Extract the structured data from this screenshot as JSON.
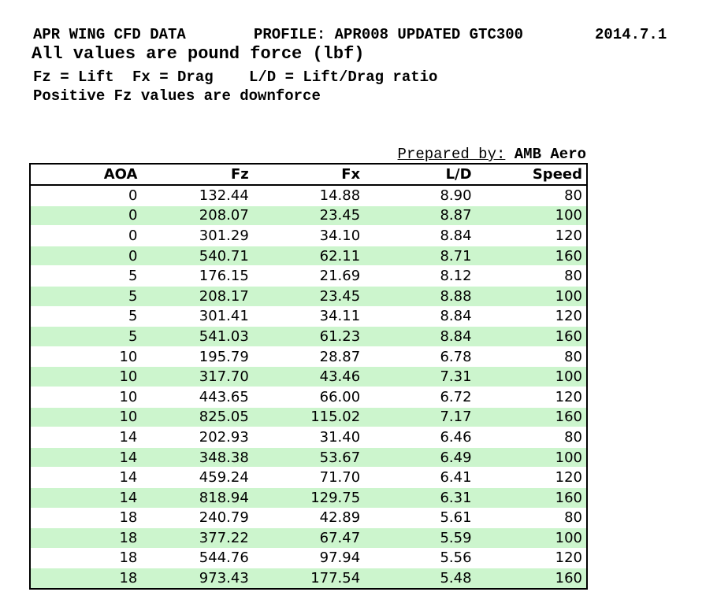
{
  "page": {
    "background": "#ffffff"
  },
  "header": {
    "title": "APR WING CFD DATA",
    "profile": "PROFILE: APR008 UPDATED GTC300",
    "date": "2014.7.1",
    "units_note": "All values are pound force (lbf)",
    "legend": {
      "fz": "Fz = Lift",
      "fx": "Fx = Drag",
      "ld": "L/D = Lift/Drag ratio"
    },
    "downforce_note": "Positive Fz values are downforce"
  },
  "prepared_by": {
    "label": "Prepared by:",
    "value": "AMB Aero"
  },
  "table": {
    "columns": [
      "AOA",
      "Fz",
      "Fx",
      "L/D",
      "Speed"
    ],
    "rows": [
      [
        "0",
        "132.44",
        "14.88",
        "8.90",
        "80"
      ],
      [
        "0",
        "208.07",
        "23.45",
        "8.87",
        "100"
      ],
      [
        "0",
        "301.29",
        "34.10",
        "8.84",
        "120"
      ],
      [
        "0",
        "540.71",
        "62.11",
        "8.71",
        "160"
      ],
      [
        "5",
        "176.15",
        "21.69",
        "8.12",
        "80"
      ],
      [
        "5",
        "208.17",
        "23.45",
        "8.88",
        "100"
      ],
      [
        "5",
        "301.41",
        "34.11",
        "8.84",
        "120"
      ],
      [
        "5",
        "541.03",
        "61.23",
        "8.84",
        "160"
      ],
      [
        "10",
        "195.79",
        "28.87",
        "6.78",
        "80"
      ],
      [
        "10",
        "317.70",
        "43.46",
        "7.31",
        "100"
      ],
      [
        "10",
        "443.65",
        "66.00",
        "6.72",
        "120"
      ],
      [
        "10",
        "825.05",
        "115.02",
        "7.17",
        "160"
      ],
      [
        "14",
        "202.93",
        "31.40",
        "6.46",
        "80"
      ],
      [
        "14",
        "348.38",
        "53.67",
        "6.49",
        "100"
      ],
      [
        "14",
        "459.24",
        "71.70",
        "6.41",
        "120"
      ],
      [
        "14",
        "818.94",
        "129.75",
        "6.31",
        "160"
      ],
      [
        "18",
        "240.79",
        "42.89",
        "5.61",
        "80"
      ],
      [
        "18",
        "377.22",
        "67.47",
        "5.59",
        "100"
      ],
      [
        "18",
        "544.76",
        "97.94",
        "5.56",
        "120"
      ],
      [
        "18",
        "973.43",
        "177.54",
        "5.48",
        "160"
      ]
    ],
    "colors": {
      "alt_row_green": "#ccf5cd",
      "border": "#000000",
      "text": "#000000"
    }
  }
}
